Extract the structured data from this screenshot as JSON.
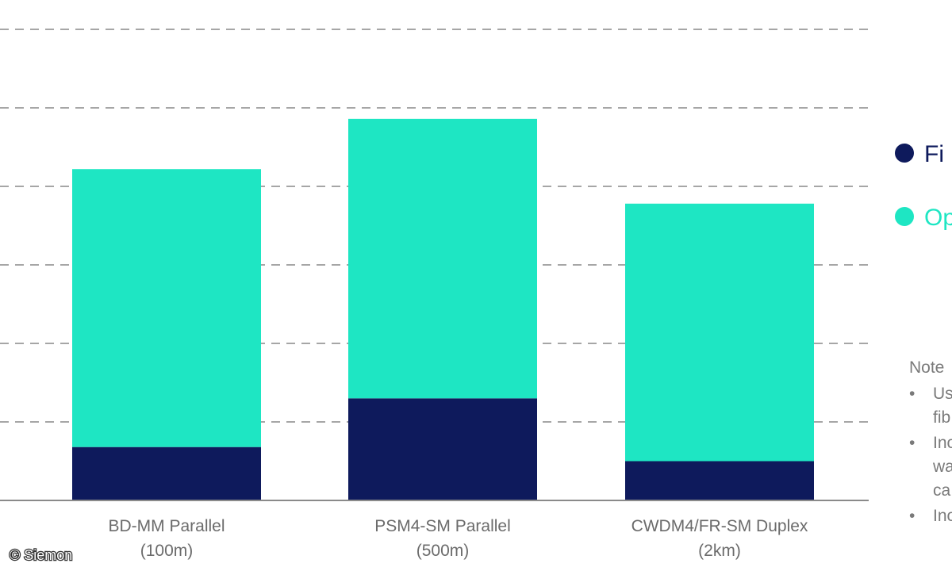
{
  "chart_data": {
    "type": "bar",
    "stacked": true,
    "categories": [
      [
        "BD-MM Parallel",
        "(100m)"
      ],
      [
        "PSM4-SM Parallel",
        "(500m)"
      ],
      [
        "CWDM4/FR-SM Duplex",
        "(2km)"
      ]
    ],
    "series": [
      {
        "name": "Fi",
        "color": "#0e1a5c",
        "values": [
          0.68,
          1.3,
          0.5
        ]
      },
      {
        "name": "Op",
        "color": "#1ee6c3",
        "values": [
          3.54,
          3.56,
          3.28
        ]
      }
    ],
    "ylim": [
      0,
      6
    ],
    "grid": true,
    "legend_position": "right"
  },
  "notes": {
    "title": "Note",
    "items": [
      {
        "bullet": "•",
        "lines": [
          "Us",
          "fib"
        ]
      },
      {
        "bullet": "•",
        "lines": [
          "Inc",
          "wa",
          "ca"
        ]
      },
      {
        "bullet": "•",
        "lines": [
          "Inc"
        ]
      }
    ]
  },
  "watermark": "© Siemon"
}
